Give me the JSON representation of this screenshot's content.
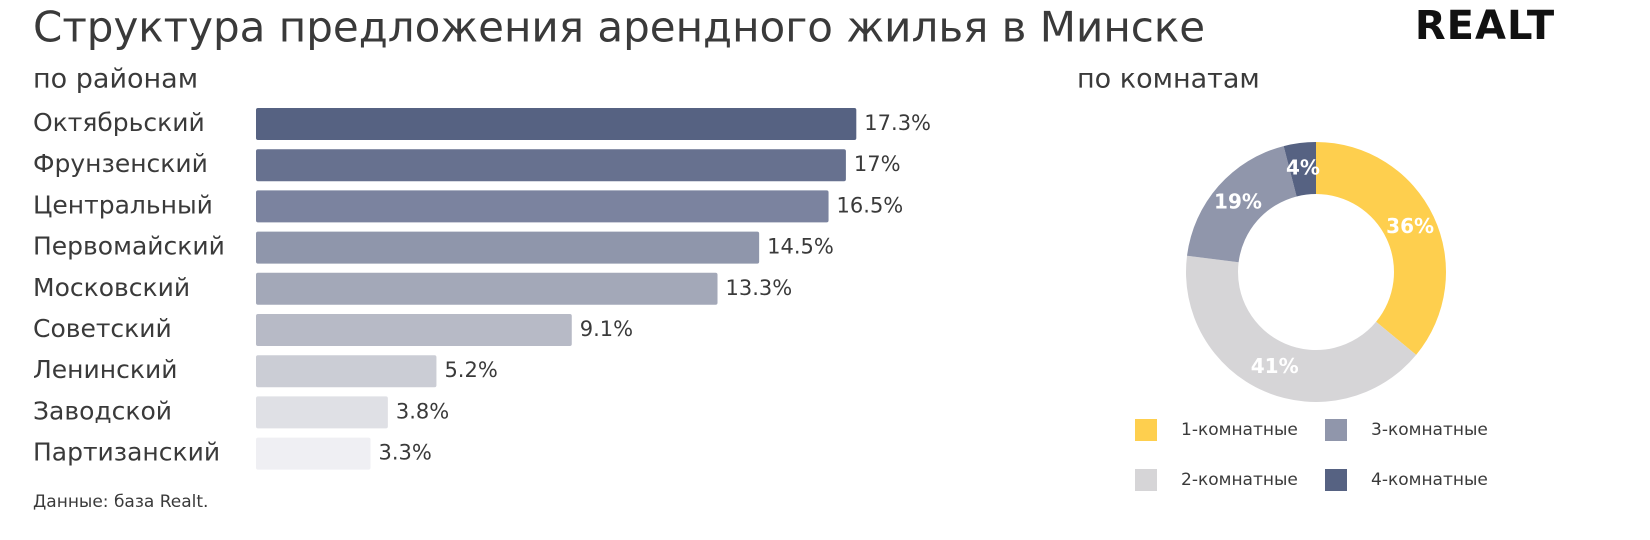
{
  "title": "Структура предложения арендного жилья в Минске",
  "logo": "REALT",
  "source": "Данные: база Realt.",
  "chart_data": [
    {
      "type": "bar",
      "subtitle": "по районам",
      "categories": [
        "Октябрьский",
        "Фрунзенский",
        "Центральный",
        "Первомайский",
        "Московский",
        "Советский",
        "Ленинский",
        "Заводской",
        "Партизанский"
      ],
      "values": [
        17.3,
        17,
        16.5,
        14.5,
        13.3,
        9.1,
        5.2,
        3.8,
        3.3
      ],
      "value_labels": [
        "17.3%",
        "17%",
        "16.5%",
        "14.5%",
        "13.3%",
        "9.1%",
        "5.2%",
        "3.8%",
        "3.3%"
      ],
      "colors": [
        "#566282",
        "#67718f",
        "#7b839f",
        "#8f96ab",
        "#a3a8b8",
        "#b7bac6",
        "#cbcdd5",
        "#dfe0e5",
        "#efeff3"
      ]
    },
    {
      "type": "pie",
      "subtitle": "по комнатам",
      "categories": [
        "1-комнатные",
        "2-комнатные",
        "3-комнатные",
        "4-комнатные"
      ],
      "values": [
        36,
        41,
        19,
        4
      ],
      "value_labels": [
        "36%",
        "41%",
        "19%",
        "4%"
      ],
      "colors": [
        "#fecf4e",
        "#d6d5d7",
        "#9096ab",
        "#566282"
      ]
    }
  ]
}
